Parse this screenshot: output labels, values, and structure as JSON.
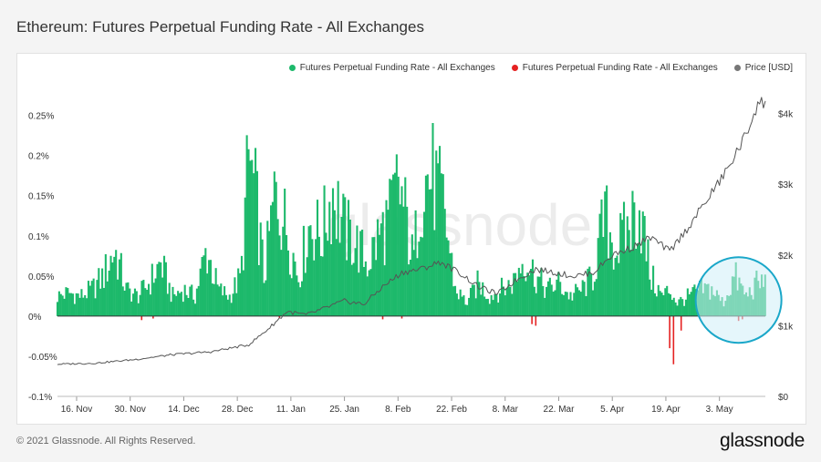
{
  "title": "Ethereum: Futures Perpetual Funding Rate - All Exchanges",
  "footer": {
    "copyright": "© 2021 Glassnode. All Rights Reserved.",
    "logo": "glassnode"
  },
  "watermark": "glassnode",
  "chart_data": {
    "type": "area",
    "title": "Ethereum: Futures Perpetual Funding Rate - All Exchanges",
    "x_ticks": [
      "16. Nov",
      "30. Nov",
      "14. Dec",
      "28. Dec",
      "11. Jan",
      "25. Jan",
      "8. Feb",
      "22. Feb",
      "8. Mar",
      "22. Mar",
      "5. Apr",
      "19. Apr",
      "3. May"
    ],
    "x_tick_day_index": [
      5,
      19,
      33,
      47,
      61,
      75,
      89,
      103,
      117,
      131,
      145,
      159,
      173
    ],
    "x_range_days": [
      0,
      185
    ],
    "y_left": {
      "ticks": [
        "0.25%",
        "0.2%",
        "0.15%",
        "0.1%",
        "0.05%",
        "0%",
        "-0.05%",
        "-0.1%"
      ],
      "tick_values": [
        0.25,
        0.2,
        0.15,
        0.1,
        0.05,
        0,
        -0.05,
        -0.1
      ],
      "range": [
        -0.1,
        0.27
      ]
    },
    "y_right": {
      "ticks": [
        "$4k",
        "$3k",
        "$2k",
        "$1k",
        "$0"
      ],
      "tick_values": [
        4000,
        3000,
        2000,
        1000,
        0
      ],
      "range": [
        0,
        4200
      ]
    },
    "legend_position": "top-right",
    "colors": {
      "positive": "#1db96b",
      "negative": "#e52222",
      "price": "#555555",
      "highlight_fill": "#cfeef8",
      "highlight_stroke": "#1aa7c9"
    },
    "series": [
      {
        "name": "Futures Perpetual Funding Rate - All Exchanges",
        "unit": "%",
        "x_days": [
          0,
          3,
          6,
          9,
          12,
          15,
          18,
          21,
          24,
          27,
          30,
          33,
          36,
          39,
          42,
          45,
          48,
          50,
          52,
          54,
          57,
          60,
          63,
          66,
          69,
          72,
          75,
          78,
          81,
          84,
          87,
          89,
          91,
          93,
          95,
          98,
          101,
          104,
          107,
          110,
          113,
          116,
          119,
          122,
          125,
          128,
          131,
          134,
          137,
          140,
          143,
          146,
          149,
          152,
          155,
          158,
          160,
          162,
          165,
          168,
          171,
          174,
          177,
          180,
          183
        ],
        "values": [
          0.03,
          0.035,
          0.03,
          0.04,
          0.06,
          0.1,
          0.04,
          0.03,
          0.05,
          0.08,
          0.03,
          0.04,
          0.03,
          0.1,
          0.04,
          0.03,
          0.06,
          0.24,
          0.17,
          0.06,
          0.19,
          0.13,
          0.06,
          0.14,
          0.12,
          0.19,
          0.13,
          0.11,
          0.08,
          0.12,
          0.15,
          0.2,
          0.15,
          0.08,
          0.2,
          0.21,
          0.16,
          0.04,
          0.02,
          0.05,
          0.03,
          0.04,
          0.05,
          0.09,
          0.06,
          0.04,
          0.05,
          0.03,
          0.04,
          0.06,
          0.15,
          0.1,
          0.13,
          0.17,
          0.06,
          0.03,
          0.04,
          0.02,
          0.03,
          0.04,
          0.04,
          0.02,
          0.06,
          0.03,
          0.05
        ]
      },
      {
        "name": "Futures Perpetual Funding Rate - All Exchanges",
        "unit": "%",
        "x_days": [
          22,
          25,
          58,
          85,
          90,
          124,
          125,
          160,
          161,
          163,
          178,
          179
        ],
        "values": [
          -0.005,
          -0.003,
          -0.002,
          -0.004,
          -0.003,
          -0.01,
          -0.012,
          -0.04,
          -0.06,
          -0.018,
          -0.006,
          -0.004
        ]
      },
      {
        "name": "Price [USD]",
        "unit": "USD",
        "x_days": [
          0,
          10,
          20,
          30,
          40,
          50,
          55,
          60,
          65,
          70,
          75,
          80,
          85,
          90,
          95,
          100,
          105,
          110,
          115,
          120,
          125,
          130,
          135,
          140,
          145,
          150,
          155,
          160,
          165,
          170,
          175,
          180,
          183
        ],
        "values": [
          455,
          470,
          520,
          590,
          630,
          730,
          950,
          1200,
          1150,
          1250,
          1350,
          1300,
          1550,
          1750,
          1800,
          1900,
          1750,
          1550,
          1450,
          1650,
          1800,
          1750,
          1700,
          1750,
          2000,
          2100,
          2250,
          2050,
          2400,
          2800,
          3200,
          3700,
          4150
        ]
      }
    ]
  }
}
